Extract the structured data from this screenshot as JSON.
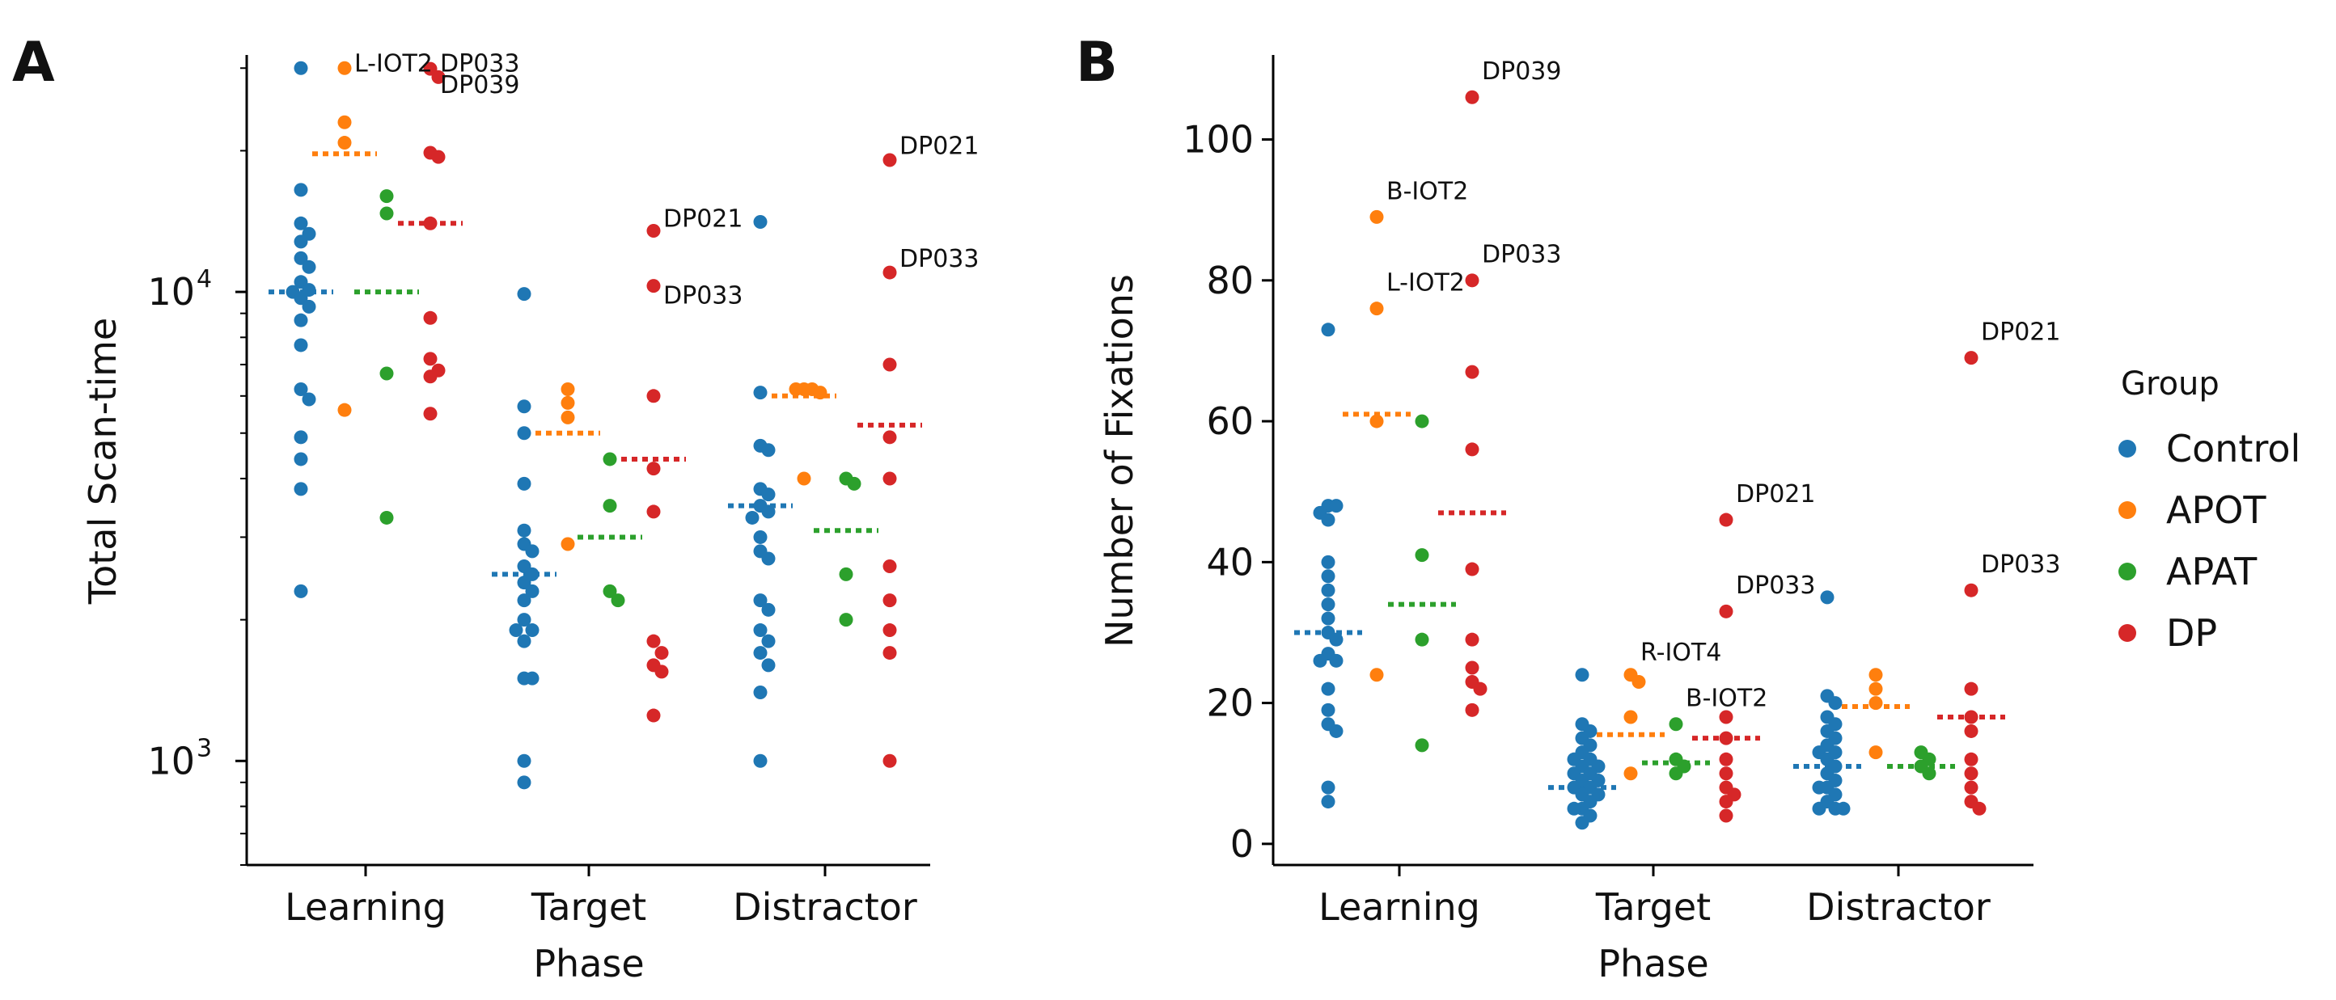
{
  "colors": {
    "Control": "#1f77b4",
    "APOT": "#ff7f0e",
    "APAT": "#2ca02c",
    "DP": "#d62728"
  },
  "chart_data": [
    {
      "type": "scatter",
      "subtype": "swarm",
      "panel": "A",
      "xlabel": "Phase",
      "ylabel": "Total Scan-time",
      "yscale": "log",
      "ylim": [
        600,
        32000
      ],
      "yticks": [
        {
          "value": 1000,
          "base": "10",
          "exp": "3"
        },
        {
          "value": 10000,
          "base": "10",
          "exp": "4"
        }
      ],
      "categories": [
        "Learning",
        "Target",
        "Distractor"
      ],
      "groups": [
        "Control",
        "APOT",
        "APAT",
        "DP"
      ],
      "points": {
        "Learning": {
          "Control": [
            30000,
            16500,
            14000,
            13300,
            12800,
            11800,
            11300,
            10500,
            10100,
            10000,
            9700,
            9300,
            8700,
            7700,
            6200,
            5900,
            4900,
            4400,
            3800,
            2300
          ],
          "APOT": [
            30000,
            23000,
            20800,
            5600
          ],
          "APAT": [
            16000,
            14700,
            6700,
            3300
          ],
          "DP": [
            29900,
            28700,
            19800,
            19400,
            14000,
            8800,
            7200,
            6800,
            6600,
            5500
          ]
        },
        "Target": {
          "Control": [
            9900,
            5700,
            5000,
            3900,
            3100,
            2900,
            2800,
            2600,
            2500,
            2400,
            2300,
            2200,
            2000,
            1900,
            1900,
            1800,
            1500,
            1500,
            1000,
            900
          ],
          "APOT": [
            6200,
            5800,
            5400,
            2900
          ],
          "APAT": [
            4400,
            3500,
            2300,
            2200
          ],
          "DP": [
            13500,
            10300,
            6000,
            4200,
            3400,
            1800,
            1700,
            1600,
            1550,
            1250
          ]
        },
        "Distractor": {
          "Control": [
            14100,
            6100,
            4700,
            4600,
            3800,
            3700,
            3500,
            3400,
            3300,
            3000,
            2800,
            2700,
            2200,
            2100,
            1900,
            1800,
            1700,
            1600,
            1400,
            1000
          ],
          "APOT": [
            6200,
            6200,
            6200,
            6100,
            4000
          ],
          "APAT": [
            4000,
            3900,
            2500,
            2000
          ],
          "DP": [
            19100,
            11000,
            7000,
            4900,
            4000,
            2600,
            2200,
            1900,
            1700,
            1000
          ]
        }
      },
      "means": {
        "Learning": {
          "Control": 10000,
          "APOT": 19700,
          "APAT": 10000,
          "DP": 14000
        },
        "Target": {
          "Control": 2500,
          "APOT": 5000,
          "APAT": 3000,
          "DP": 4400
        },
        "Distractor": {
          "Control": 3500,
          "APOT": 6000,
          "APAT": 3100,
          "DP": 5200
        }
      },
      "annotations": [
        {
          "text": "L-IOT2",
          "category": "Learning",
          "group": "APOT",
          "y": 30000
        },
        {
          "text": "DP033",
          "category": "Learning",
          "group": "DP",
          "y": 30000
        },
        {
          "text": "DP039",
          "category": "Learning",
          "group": "DP",
          "y": 27000
        },
        {
          "text": "DP021",
          "category": "Target",
          "group": "DP",
          "y": 14000
        },
        {
          "text": "DP033",
          "category": "Target",
          "group": "DP",
          "y": 9600
        },
        {
          "text": "DP021",
          "category": "Distractor",
          "group": "DP",
          "y": 20000
        },
        {
          "text": "DP033",
          "category": "Distractor",
          "group": "DP",
          "y": 11500
        }
      ]
    },
    {
      "type": "scatter",
      "subtype": "swarm",
      "panel": "B",
      "xlabel": "Phase",
      "ylabel": "Number of Fixations",
      "yscale": "linear",
      "ylim": [
        -3,
        112
      ],
      "yticks": [
        0,
        20,
        40,
        60,
        80,
        100
      ],
      "categories": [
        "Learning",
        "Target",
        "Distractor"
      ],
      "groups": [
        "Control",
        "APOT",
        "APAT",
        "DP"
      ],
      "points": {
        "Learning": {
          "Control": [
            73,
            48,
            48,
            47,
            46,
            40,
            38,
            36,
            34,
            32,
            30,
            29,
            27,
            26,
            26,
            22,
            19,
            17,
            16,
            8,
            6
          ],
          "APOT": [
            89,
            76,
            60,
            24
          ],
          "APAT": [
            60,
            41,
            29,
            14
          ],
          "DP": [
            106,
            80,
            67,
            56,
            39,
            29,
            25,
            23,
            22,
            19
          ]
        },
        "Target": {
          "Control": [
            24,
            17,
            16,
            15,
            14,
            13,
            12,
            12,
            11,
            11,
            10,
            10,
            9,
            9,
            8,
            8,
            7,
            7,
            6,
            5,
            5,
            4,
            3
          ],
          "APOT": [
            24,
            23,
            18,
            10
          ],
          "APAT": [
            17,
            12,
            11,
            10
          ],
          "DP": [
            46,
            33,
            18,
            15,
            12,
            10,
            8,
            7,
            6,
            4
          ]
        },
        "Distractor": {
          "Control": [
            35,
            21,
            20,
            18,
            17,
            16,
            15,
            14,
            13,
            13,
            12,
            11,
            10,
            9,
            8,
            8,
            7,
            6,
            5,
            5,
            5
          ],
          "APOT": [
            24,
            22,
            20,
            13
          ],
          "APAT": [
            13,
            12,
            11,
            10
          ],
          "DP": [
            69,
            36,
            22,
            18,
            16,
            12,
            10,
            8,
            6,
            5
          ]
        }
      },
      "means": {
        "Learning": {
          "Control": 30,
          "APOT": 61,
          "APAT": 34,
          "DP": 47
        },
        "Target": {
          "Control": 8,
          "APOT": 15.5,
          "APAT": 11.5,
          "DP": 15
        },
        "Distractor": {
          "Control": 11,
          "APOT": 19.5,
          "APAT": 11,
          "DP": 18
        }
      },
      "annotations": [
        {
          "text": "DP039",
          "category": "Learning",
          "group": "DP",
          "y": 109
        },
        {
          "text": "B-IOT2",
          "category": "Learning",
          "group": "APOT",
          "y": 92
        },
        {
          "text": "L-IOT2",
          "category": "Learning",
          "group": "APOT",
          "y": 79
        },
        {
          "text": "DP033",
          "category": "Learning",
          "group": "DP",
          "y": 83
        },
        {
          "text": "DP021",
          "category": "Target",
          "group": "DP",
          "y": 49
        },
        {
          "text": "DP033",
          "category": "Target",
          "group": "DP",
          "y": 36
        },
        {
          "text": "R-IOT4",
          "category": "Target",
          "group": "APOT",
          "y": 26.5
        },
        {
          "text": "B-IOT2",
          "category": "Target",
          "group": "APAT",
          "y": 20
        },
        {
          "text": "DP021",
          "category": "Distractor",
          "group": "DP",
          "y": 72
        },
        {
          "text": "DP033",
          "category": "Distractor",
          "group": "DP",
          "y": 39
        }
      ]
    }
  ],
  "legend": {
    "title": "Group",
    "entries": [
      "Control",
      "APOT",
      "APAT",
      "DP"
    ],
    "position": "right"
  }
}
